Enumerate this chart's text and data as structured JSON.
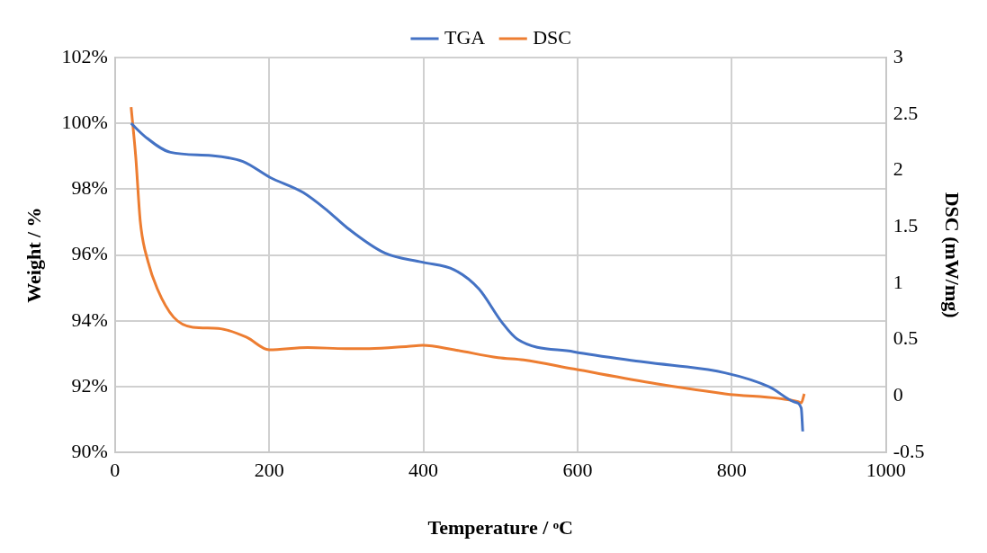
{
  "chart_data": {
    "type": "line",
    "xlabel": "Temperature / ᵒC",
    "ylabel": "Weight / %",
    "y2label": "DSC (mW/mg)",
    "xlim": [
      0,
      1000
    ],
    "xticks": [
      0,
      200,
      400,
      600,
      800,
      1000
    ],
    "ylim": [
      90,
      102
    ],
    "yticks": [
      {
        "value": 90,
        "label": "90%"
      },
      {
        "value": 92,
        "label": "92%"
      },
      {
        "value": 94,
        "label": "94%"
      },
      {
        "value": 96,
        "label": "96%"
      },
      {
        "value": 98,
        "label": "98%"
      },
      {
        "value": 100,
        "label": "100%"
      },
      {
        "value": 102,
        "label": "102%"
      }
    ],
    "y2lim": [
      -0.5,
      3
    ],
    "y2ticks": [
      -0.5,
      0,
      0.5,
      1,
      1.5,
      2,
      2.5,
      3
    ],
    "grid": true,
    "legend": "top",
    "series": [
      {
        "name": "TGA",
        "color": "#4472c4",
        "axis": "y",
        "x": [
          21,
          39,
          72,
          125,
          166,
          201,
          244,
          276,
          301,
          350,
          399,
          440,
          472,
          502,
          522,
          595,
          686,
          791,
          849,
          882,
          890,
          892
        ],
        "values": [
          100.0,
          99.6,
          99.12,
          99.02,
          98.84,
          98.36,
          97.9,
          97.34,
          96.83,
          96.06,
          95.78,
          95.55,
          94.97,
          93.95,
          93.44,
          93.06,
          92.75,
          92.42,
          91.99,
          91.53,
          91.35,
          90.64
        ]
      },
      {
        "name": "DSC",
        "color": "#ed7d31",
        "axis": "y2",
        "x": [
          21,
          27,
          33,
          43,
          55,
          76,
          101,
          134,
          171,
          200,
          250,
          300,
          330,
          380,
          399,
          440,
          497,
          530,
          595,
          702,
          791,
          886,
          890,
          894
        ],
        "values": [
          2.56,
          2.12,
          1.54,
          1.19,
          0.95,
          0.7,
          0.61,
          0.6,
          0.52,
          0.41,
          0.43,
          0.42,
          0.42,
          0.44,
          0.45,
          0.41,
          0.34,
          0.32,
          0.24,
          0.11,
          0.02,
          -0.05,
          -0.06,
          0.02
        ]
      }
    ]
  }
}
